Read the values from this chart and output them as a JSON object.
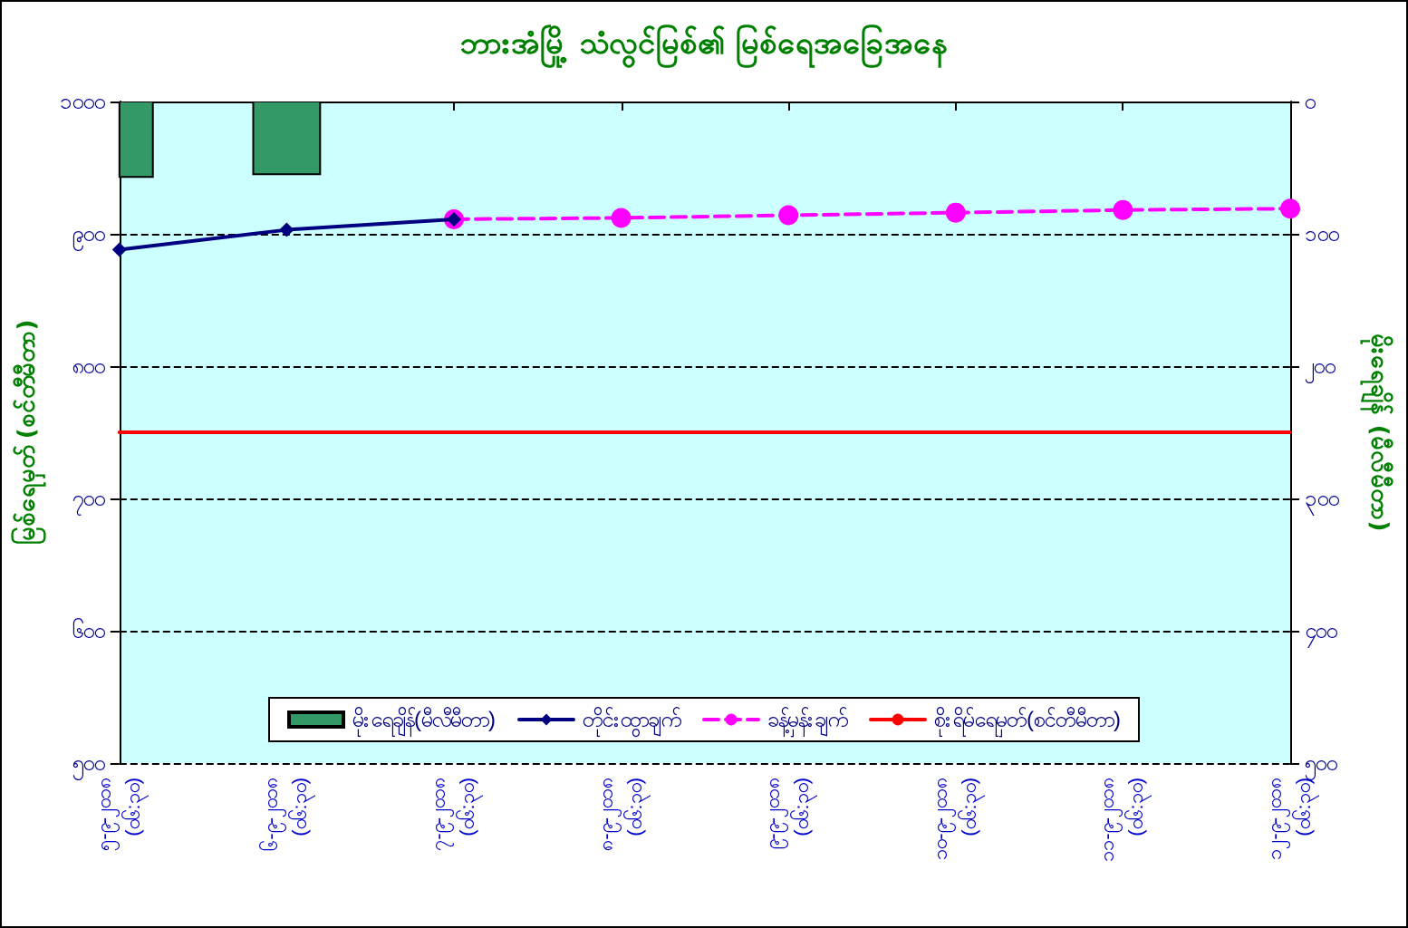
{
  "chart_data": {
    "type": "line",
    "title": "ဘားအံမြို့ သံလွင်မြစ်၏ မြစ်ရေအခြေအနေ",
    "ylabel": "မြစ်ရေမှတ် (စင်တီမီတာ)",
    "y2label": "မိုးရေချိန် (မီလီမီတာ)",
    "categories": [
      "၅-၉-၂၀၁၈\n(၀၆:၃၀)",
      "၆-၉-၂၀၁၈\n(၀၆:၃၀)",
      "၇-၉-၂၀၁၈\n(၀၆:၃၀)",
      "၈-၉-၂၀၁၈\n(၀၆:၃၀)",
      "၉-၉-၂၀၁၈\n(၀၆:၃၀)",
      "၁၀-၉-၂၀၁၈\n(၀၆:၃၀)",
      "၁၁-၉-၂၀၁၈\n(၀၆:၃၀)",
      "၁၂-၉-၂၀၁၈\n(၀၆:၃၀)"
    ],
    "series": [
      {
        "name": "မိုးရေချိန်(မီလီမီတာ)",
        "type": "bar",
        "axis": "y2",
        "color": "#339966",
        "values": [
          57,
          55,
          null,
          null,
          null,
          null,
          null,
          null
        ]
      },
      {
        "name": "တိုင်းထွာချက်",
        "color": "#000080",
        "marker": "diamond",
        "line_style": "solid",
        "values": [
          888,
          903,
          911,
          null,
          null,
          null,
          null,
          null
        ]
      },
      {
        "name": "ခန့်မှန်းချက်",
        "color": "#ff00ff",
        "marker": "circle",
        "line_style": "dashed",
        "values": [
          null,
          null,
          911,
          912,
          914,
          916,
          918,
          919
        ]
      },
      {
        "name": "စိုးရိမ်ရေမှတ်(စင်တီမီတာ)",
        "color": "#ff0000",
        "marker": "none",
        "line_style": "solid",
        "values": [
          750,
          750,
          750,
          750,
          750,
          750,
          750,
          750
        ]
      }
    ],
    "ylim": [
      500,
      1000
    ],
    "yticks": [
      {
        "value": 500,
        "label": "၅၀၀"
      },
      {
        "value": 600,
        "label": "၆၀၀"
      },
      {
        "value": 700,
        "label": "၇၀၀"
      },
      {
        "value": 800,
        "label": "၈၀၀"
      },
      {
        "value": 900,
        "label": "၉၀၀"
      },
      {
        "value": 1000,
        "label": "၁၀၀၀"
      }
    ],
    "y2lim": [
      500,
      0
    ],
    "y2ticks": [
      {
        "value": 0,
        "label": "၀"
      },
      {
        "value": 100,
        "label": "၁၀၀"
      },
      {
        "value": 200,
        "label": "၂၀၀"
      },
      {
        "value": 300,
        "label": "၃၀၀"
      },
      {
        "value": 400,
        "label": "၄၀၀"
      },
      {
        "value": 500,
        "label": "၅၀၀"
      }
    ],
    "grid": "y",
    "legend": "bottom"
  }
}
